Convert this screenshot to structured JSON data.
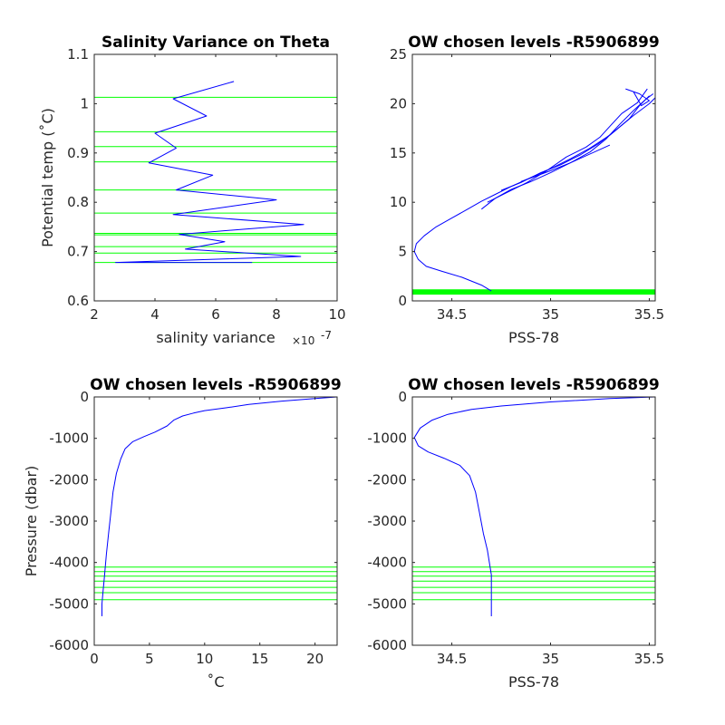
{
  "chart_data": [
    {
      "id": "tl",
      "type": "line",
      "title": "Salinity Variance on Theta",
      "xlabel": "salinity variance",
      "x_exponent_base": "×10",
      "x_exponent_power": "-7",
      "ylabel": "Potential temp (˚C)",
      "xlim": [
        2,
        10
      ],
      "ylim": [
        0.6,
        1.1
      ],
      "xticks": [
        2,
        4,
        6,
        8,
        10
      ],
      "xtick_labels": [
        "2",
        "4",
        "6",
        "8",
        "10"
      ],
      "yticks": [
        0.6,
        0.7,
        0.8,
        0.9,
        1.0,
        1.1
      ],
      "ytick_labels": [
        "0.6",
        "0.7",
        "0.8",
        "0.9",
        "1",
        "1.1"
      ],
      "series": [
        {
          "color": "#0000ff",
          "x": [
            6.6,
            4.6,
            5.7,
            4.0,
            4.7,
            3.8,
            5.9,
            4.7,
            8.0,
            4.6,
            8.9,
            4.8,
            6.3,
            5.0,
            8.8,
            2.7,
            7.2
          ],
          "y": [
            1.045,
            1.01,
            0.975,
            0.94,
            0.91,
            0.88,
            0.855,
            0.825,
            0.805,
            0.775,
            0.755,
            0.735,
            0.72,
            0.705,
            0.69,
            0.678,
            0.678
          ]
        }
      ],
      "hlines": {
        "color": "#00ff00",
        "values": [
          1.013,
          0.943,
          0.913,
          0.882,
          0.825,
          0.778,
          0.737,
          0.734,
          0.71,
          0.697,
          0.678
        ]
      }
    },
    {
      "id": "tr",
      "type": "line",
      "title": "OW chosen levels -R5906899",
      "xlabel": "PSS-78",
      "ylabel": "",
      "xlim": [
        34.3,
        35.53
      ],
      "ylim": [
        0,
        25
      ],
      "xticks": [
        34.5,
        35,
        35.5
      ],
      "xtick_labels": [
        "34.5",
        "35",
        "35.5"
      ],
      "yticks": [
        0,
        5,
        10,
        15,
        20,
        25
      ],
      "ytick_labels": [
        "0",
        "5",
        "10",
        "15",
        "20",
        "25"
      ],
      "series": [
        {
          "color": "#0000ff",
          "x": [
            34.7,
            34.65,
            34.55,
            34.45,
            34.37,
            34.33,
            34.31,
            34.32,
            34.36,
            34.42,
            34.5,
            34.58,
            34.65,
            34.72,
            34.8,
            34.9,
            35.0,
            35.1,
            35.2,
            35.3,
            35.4,
            35.45,
            35.5
          ],
          "y": [
            1.0,
            1.6,
            2.4,
            3.0,
            3.5,
            4.2,
            5.0,
            5.8,
            6.6,
            7.5,
            8.4,
            9.3,
            10.1,
            10.8,
            11.6,
            12.5,
            13.4,
            14.4,
            15.5,
            16.8,
            18.5,
            19.8,
            20.8
          ]
        },
        {
          "color": "#0000ff",
          "x": [
            34.65,
            34.72,
            34.8,
            34.9,
            35.0,
            35.1,
            35.2,
            35.28,
            35.35,
            35.42,
            35.48,
            35.52
          ],
          "y": [
            9.3,
            10.4,
            11.3,
            12.1,
            13.0,
            14.0,
            15.1,
            16.4,
            17.9,
            19.3,
            20.4,
            21.0
          ]
        },
        {
          "color": "#0000ff",
          "x": [
            34.68,
            34.78,
            34.88,
            34.98,
            35.08,
            35.18,
            35.25,
            35.3,
            35.36,
            35.44,
            35.49
          ],
          "y": [
            10.0,
            11.0,
            12.0,
            13.2,
            14.6,
            15.6,
            16.6,
            17.7,
            19.0,
            20.1,
            21.5
          ]
        },
        {
          "color": "#0000ff",
          "x": [
            34.75,
            34.85,
            34.95,
            35.05,
            35.15,
            35.24,
            35.33,
            35.42,
            35.5,
            35.53
          ],
          "y": [
            11.2,
            12.0,
            13.0,
            13.8,
            14.8,
            15.9,
            17.3,
            18.8,
            20.0,
            20.6
          ]
        },
        {
          "color": "#0000ff",
          "x": [
            34.85,
            35.0,
            35.1,
            35.3
          ],
          "y": [
            12.1,
            13.2,
            14.0,
            15.8
          ]
        },
        {
          "color": "#0000ff",
          "x": [
            35.38,
            35.45,
            35.5,
            35.46,
            35.42
          ],
          "y": [
            21.5,
            21.0,
            20.3,
            19.8,
            21.2
          ]
        }
      ],
      "hlines": {
        "color": "#00ff00",
        "values": [
          0.7,
          0.8,
          0.9,
          1.0,
          1.1
        ]
      }
    },
    {
      "id": "bl",
      "type": "line",
      "title": "OW chosen levels -R5906899",
      "xlabel": "˚C",
      "ylabel": "Pressure (dbar)",
      "xlim": [
        0,
        22
      ],
      "ylim": [
        -6000,
        0
      ],
      "xticks": [
        0,
        5,
        10,
        15,
        20
      ],
      "xtick_labels": [
        "0",
        "5",
        "10",
        "15",
        "20"
      ],
      "yticks": [
        -6000,
        -5000,
        -4000,
        -3000,
        -2000,
        -1000,
        0
      ],
      "ytick_labels": [
        "-6000",
        "-5000",
        "-4000",
        "-3000",
        "-2000",
        "-1000",
        "0"
      ],
      "series": [
        {
          "color": "#0000ff",
          "x": [
            22.0,
            20.0,
            17.0,
            14.0,
            12.0,
            10.0,
            9.0,
            8.0,
            7.2,
            6.6,
            5.5,
            4.5,
            3.5,
            2.8,
            2.4,
            2.0,
            1.7,
            1.5,
            1.3,
            1.1,
            1.0,
            0.9,
            0.8,
            0.7,
            0.7
          ],
          "y": [
            0,
            -40,
            -100,
            -180,
            -260,
            -330,
            -390,
            -460,
            -560,
            -700,
            -850,
            -960,
            -1080,
            -1250,
            -1500,
            -1850,
            -2300,
            -2800,
            -3300,
            -3800,
            -4100,
            -4400,
            -4700,
            -5000,
            -5300
          ]
        }
      ],
      "hlines": {
        "color": "#00ff00",
        "values": [
          -4110,
          -4220,
          -4330,
          -4450,
          -4600,
          -4730,
          -4900
        ]
      }
    },
    {
      "id": "br",
      "type": "line",
      "title": "OW chosen levels -R5906899",
      "xlabel": "PSS-78",
      "ylabel": "",
      "xlim": [
        34.3,
        35.53
      ],
      "ylim": [
        -6000,
        0
      ],
      "xticks": [
        34.5,
        35,
        35.5
      ],
      "xtick_labels": [
        "34.5",
        "35",
        "35.5"
      ],
      "yticks": [
        -6000,
        -5000,
        -4000,
        -3000,
        -2000,
        -1000,
        0
      ],
      "ytick_labels": [
        "-6000",
        "-5000",
        "-4000",
        "-3000",
        "-2000",
        "-1000",
        "0"
      ],
      "series": [
        {
          "color": "#0000ff",
          "x": [
            35.53,
            35.3,
            35.0,
            34.75,
            34.6,
            34.48,
            34.4,
            34.34,
            34.31,
            34.33,
            34.38,
            34.46,
            34.54,
            34.59,
            34.62,
            34.64,
            34.66,
            34.68,
            34.69,
            34.7,
            34.7,
            34.7,
            34.7
          ],
          "y": [
            0,
            -40,
            -120,
            -220,
            -300,
            -420,
            -560,
            -750,
            -980,
            -1180,
            -1330,
            -1480,
            -1650,
            -1900,
            -2300,
            -2800,
            -3300,
            -3700,
            -4000,
            -4300,
            -4700,
            -5000,
            -5300
          ]
        }
      ],
      "hlines": {
        "color": "#00ff00",
        "values": [
          -4110,
          -4220,
          -4330,
          -4450,
          -4600,
          -4730,
          -4900
        ]
      }
    }
  ]
}
